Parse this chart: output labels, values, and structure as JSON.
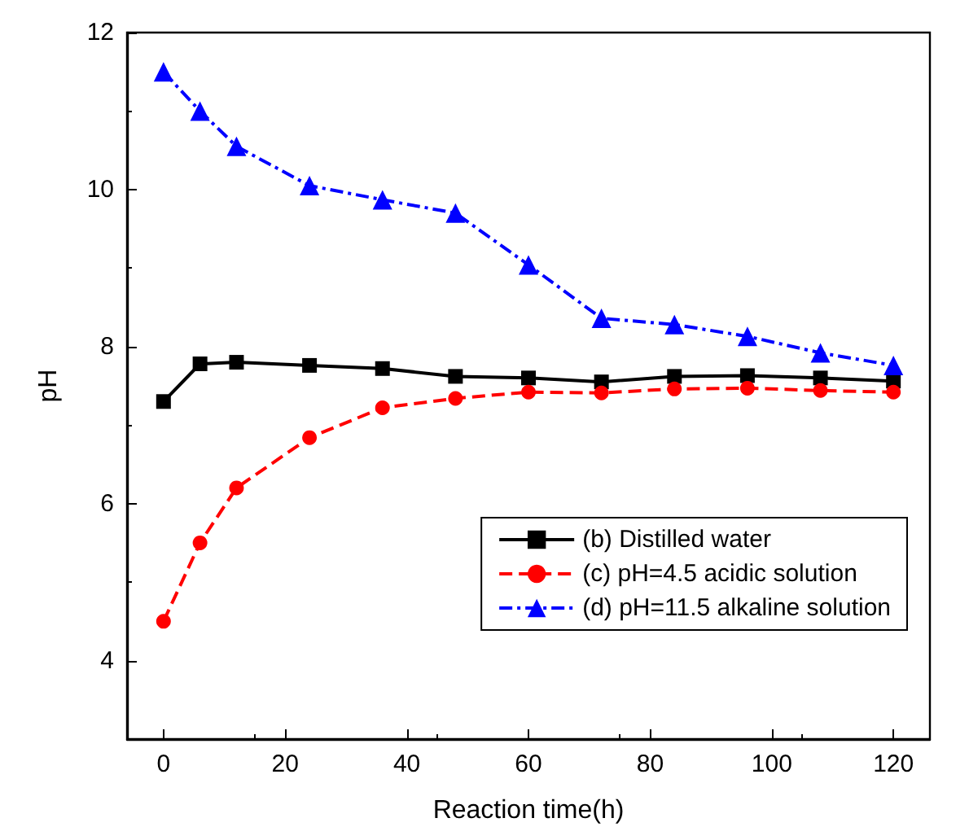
{
  "chart_data": {
    "type": "line",
    "xlabel": "Reaction time(h)",
    "ylabel": "pH",
    "x": [
      0,
      6,
      12,
      24,
      36,
      48,
      60,
      72,
      84,
      96,
      108,
      120
    ],
    "series": [
      {
        "name": "(b) Distilled water",
        "color": "#000000",
        "marker": "square",
        "line_style": "solid",
        "values": [
          7.3,
          7.78,
          7.8,
          7.76,
          7.72,
          7.62,
          7.6,
          7.55,
          7.62,
          7.63,
          7.6,
          7.56
        ]
      },
      {
        "name": "(c) pH=4.5 acidic solution",
        "color": "#ff0000",
        "marker": "circle",
        "line_style": "dashed",
        "values": [
          4.5,
          5.5,
          6.2,
          6.84,
          7.22,
          7.34,
          7.42,
          7.41,
          7.46,
          7.47,
          7.44,
          7.42
        ]
      },
      {
        "name": "(d) pH=11.5 alkaline solution",
        "color": "#0000ff",
        "marker": "triangle",
        "line_style": "dashdot",
        "values": [
          11.5,
          11.0,
          10.55,
          10.05,
          9.87,
          9.7,
          9.04,
          8.36,
          8.28,
          8.13,
          7.92,
          7.76
        ]
      }
    ],
    "xlim": [
      -6,
      126
    ],
    "xticks": [
      0,
      20,
      40,
      60,
      80,
      100,
      120
    ],
    "ylim": [
      3,
      12
    ],
    "yticks": [
      4,
      6,
      8,
      10,
      12
    ],
    "grid": false,
    "legend": "right"
  }
}
